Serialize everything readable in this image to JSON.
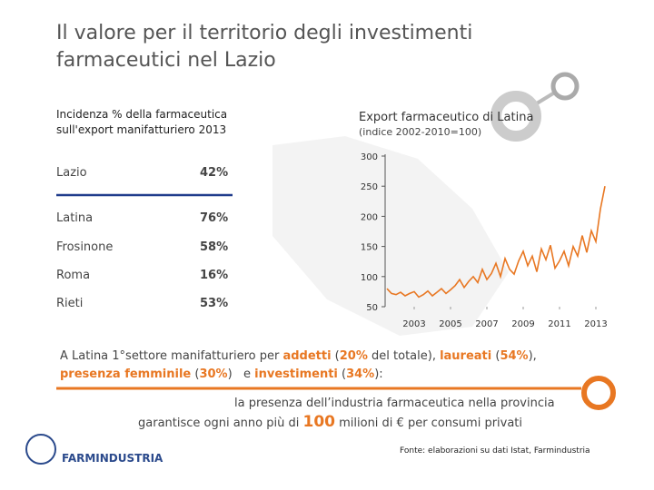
{
  "title": "Il valore per il territorio degli investimenti farmaceutici nel Lazio",
  "table": {
    "header": "Incidenza % della farmaceutica sull'export manifatturiero 2013",
    "rows": [
      [
        "Lazio",
        "42%"
      ],
      [
        "Latina",
        "76%"
      ],
      [
        "Frosinone",
        "58%"
      ],
      [
        "Roma",
        "16%"
      ],
      [
        "Rieti",
        "53%"
      ]
    ]
  },
  "chart_data": {
    "type": "line",
    "title": "Export farmaceutico di Latina",
    "subtitle": "(indice 2002-2010=100)",
    "x": [
      2001.5,
      2001.75,
      2002,
      2002.25,
      2002.5,
      2002.75,
      2003,
      2003.25,
      2003.5,
      2003.75,
      2004,
      2004.25,
      2004.5,
      2004.75,
      2005,
      2005.25,
      2005.5,
      2005.75,
      2006,
      2006.25,
      2006.5,
      2006.75,
      2007,
      2007.25,
      2007.5,
      2007.75,
      2008,
      2008.25,
      2008.5,
      2008.75,
      2009,
      2009.25,
      2009.5,
      2009.75,
      2010,
      2010.25,
      2010.5,
      2010.75,
      2011,
      2011.25,
      2011.5,
      2011.75,
      2012,
      2012.25,
      2012.5,
      2012.75,
      2013,
      2013.25,
      2013.5
    ],
    "series": [
      {
        "name": "Export",
        "color": "#e87722",
        "values": [
          80,
          72,
          70,
          74,
          68,
          72,
          75,
          66,
          70,
          76,
          68,
          74,
          80,
          72,
          78,
          85,
          95,
          82,
          92,
          100,
          90,
          112,
          95,
          105,
          122,
          100,
          130,
          112,
          104,
          126,
          142,
          118,
          134,
          108,
          146,
          128,
          152,
          114,
          126,
          142,
          118,
          150,
          134,
          168,
          140,
          176,
          158,
          212,
          250
        ]
      }
    ],
    "xlim": [
      2001.4,
      2014.2
    ],
    "ylim": [
      50,
      300
    ],
    "xticks": [
      2003,
      2005,
      2007,
      2009,
      2011,
      2013
    ],
    "yticks": [
      50,
      100,
      150,
      200,
      250,
      300
    ]
  },
  "highlights": {
    "line1": [
      "A Latina 1°settore manifatturiero per ",
      "addetti",
      " (",
      "20%",
      " del totale), ",
      "laureati",
      " (",
      "54%",
      "),"
    ],
    "line2": [
      "presenza femminile",
      " (",
      "30%",
      ")   e ",
      "investimenti",
      " (",
      "34%",
      "):"
    ],
    "line3": "la presenza dell’industria farmaceutica nella provincia",
    "line4": [
      "garantisce ogni anno più di ",
      "100",
      " milioni di € per consumi privati"
    ]
  },
  "logo": "FARMINDUSTRIA",
  "source": "Fonte: elaborazioni su dati Istat, Farmindustria"
}
